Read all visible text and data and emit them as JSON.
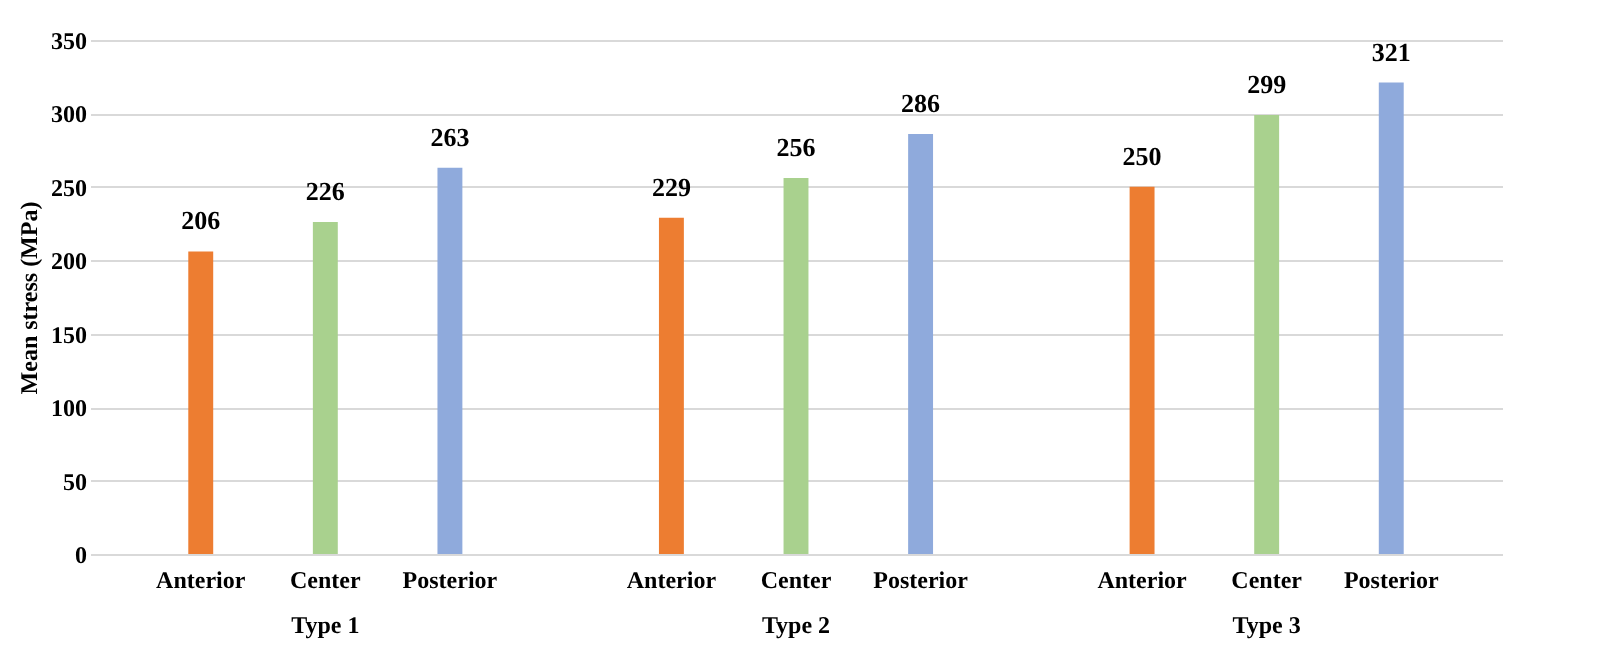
{
  "chart_data": {
    "type": "bar",
    "ylabel": "Mean stress (MPa)",
    "categories": [
      "Type 1",
      "Type 2",
      "Type 3"
    ],
    "series": [
      {
        "name": "Anterior",
        "color": "#ed7d31",
        "values": [
          206,
          229,
          250
        ]
      },
      {
        "name": "Center",
        "color": "#a9d18e",
        "values": [
          226,
          256,
          299
        ]
      },
      {
        "name": "Posterior",
        "color": "#8faadc",
        "values": [
          263,
          286,
          321
        ]
      }
    ],
    "ylim": [
      0,
      350
    ],
    "yticks": [
      0,
      50,
      100,
      150,
      200,
      250,
      300,
      350
    ],
    "grid": "y",
    "data_labels": true,
    "legend": false
  }
}
